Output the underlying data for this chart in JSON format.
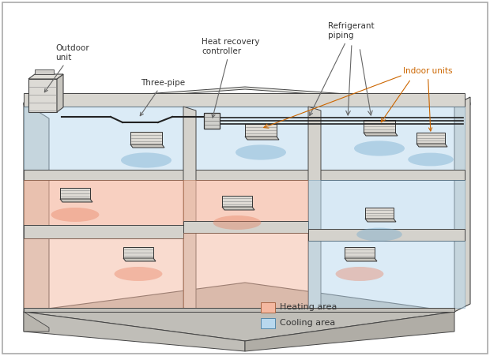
{
  "heating_color": "#f5b8a0",
  "cooling_color": "#b8d8ee",
  "wall_light": "#e8e8e4",
  "wall_mid": "#d4d2cc",
  "wall_dark": "#c0beb8",
  "wall_edge": "#444444",
  "pipe_color": "#222222",
  "label_dark": "#333333",
  "label_orange": "#cc6600",
  "label_blue": "#2266aa",
  "legend_heating": "#f5b8a0",
  "legend_cooling": "#b8d8ee",
  "labels": {
    "outdoor_unit": "Outdoor\nunit",
    "three_pipe": "Three-pipe",
    "heat_recovery": "Heat recovery\ncontroller",
    "refrigerant": "Refrigerant\npiping",
    "indoor_units": "Indoor units",
    "heating_area": "Heating area",
    "cooling_area": "Cooling area"
  }
}
